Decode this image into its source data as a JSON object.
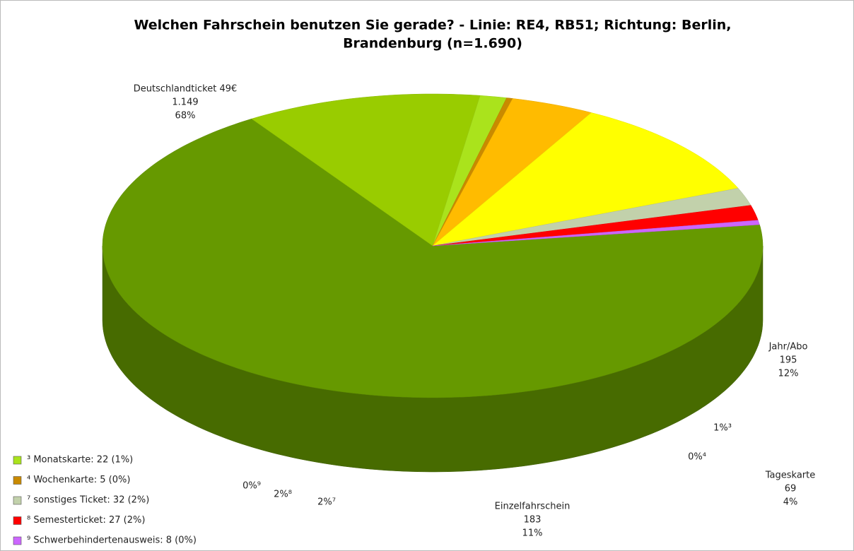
{
  "chart_data": {
    "type": "pie",
    "title_lines": [
      "Welchen Fahrschein benutzen Sie gerade? - Linie: RE4, RB51; Richtung: Berlin,",
      "Brandenburg (n=1.690)"
    ],
    "categories": [
      "Deutschlandticket  49€",
      "Jahr/Abo",
      null,
      null,
      "Tageskarte",
      "Einzelfahrschein",
      null,
      null,
      null
    ],
    "values": [
      1149,
      195,
      22,
      5,
      69,
      183,
      32,
      27,
      8
    ],
    "value_labels": [
      "1.149",
      "195",
      null,
      null,
      "69",
      "183",
      null,
      null,
      null
    ],
    "percent_labels": [
      "68%",
      "12%",
      "1%³",
      "0%⁴",
      "4%",
      "11%",
      "2%⁷",
      "2%⁸",
      "0%⁹"
    ],
    "colors": [
      "#669900",
      "#99cc00",
      "#aae31c",
      "#c98a00",
      "#ffbb00",
      "#ffff00",
      "#c2d1ab",
      "#ff0000",
      "#cc66ff"
    ],
    "legend": [
      {
        "label": "³ Monatskarte: 22 (1%)",
        "color": "#aae31c"
      },
      {
        "label": "⁴ Wochenkarte: 5 (0%)",
        "color": "#c98a00"
      },
      {
        "label": "⁷ sonstiges Ticket: 32 (2%)",
        "color": "#c2d1ab"
      },
      {
        "label": "⁸ Semesterticket: 27 (2%)",
        "color": "#ff0000"
      },
      {
        "label": "⁹ Schwerbehindertenausweis: 8 (0%)",
        "color": "#cc66ff"
      }
    ]
  }
}
